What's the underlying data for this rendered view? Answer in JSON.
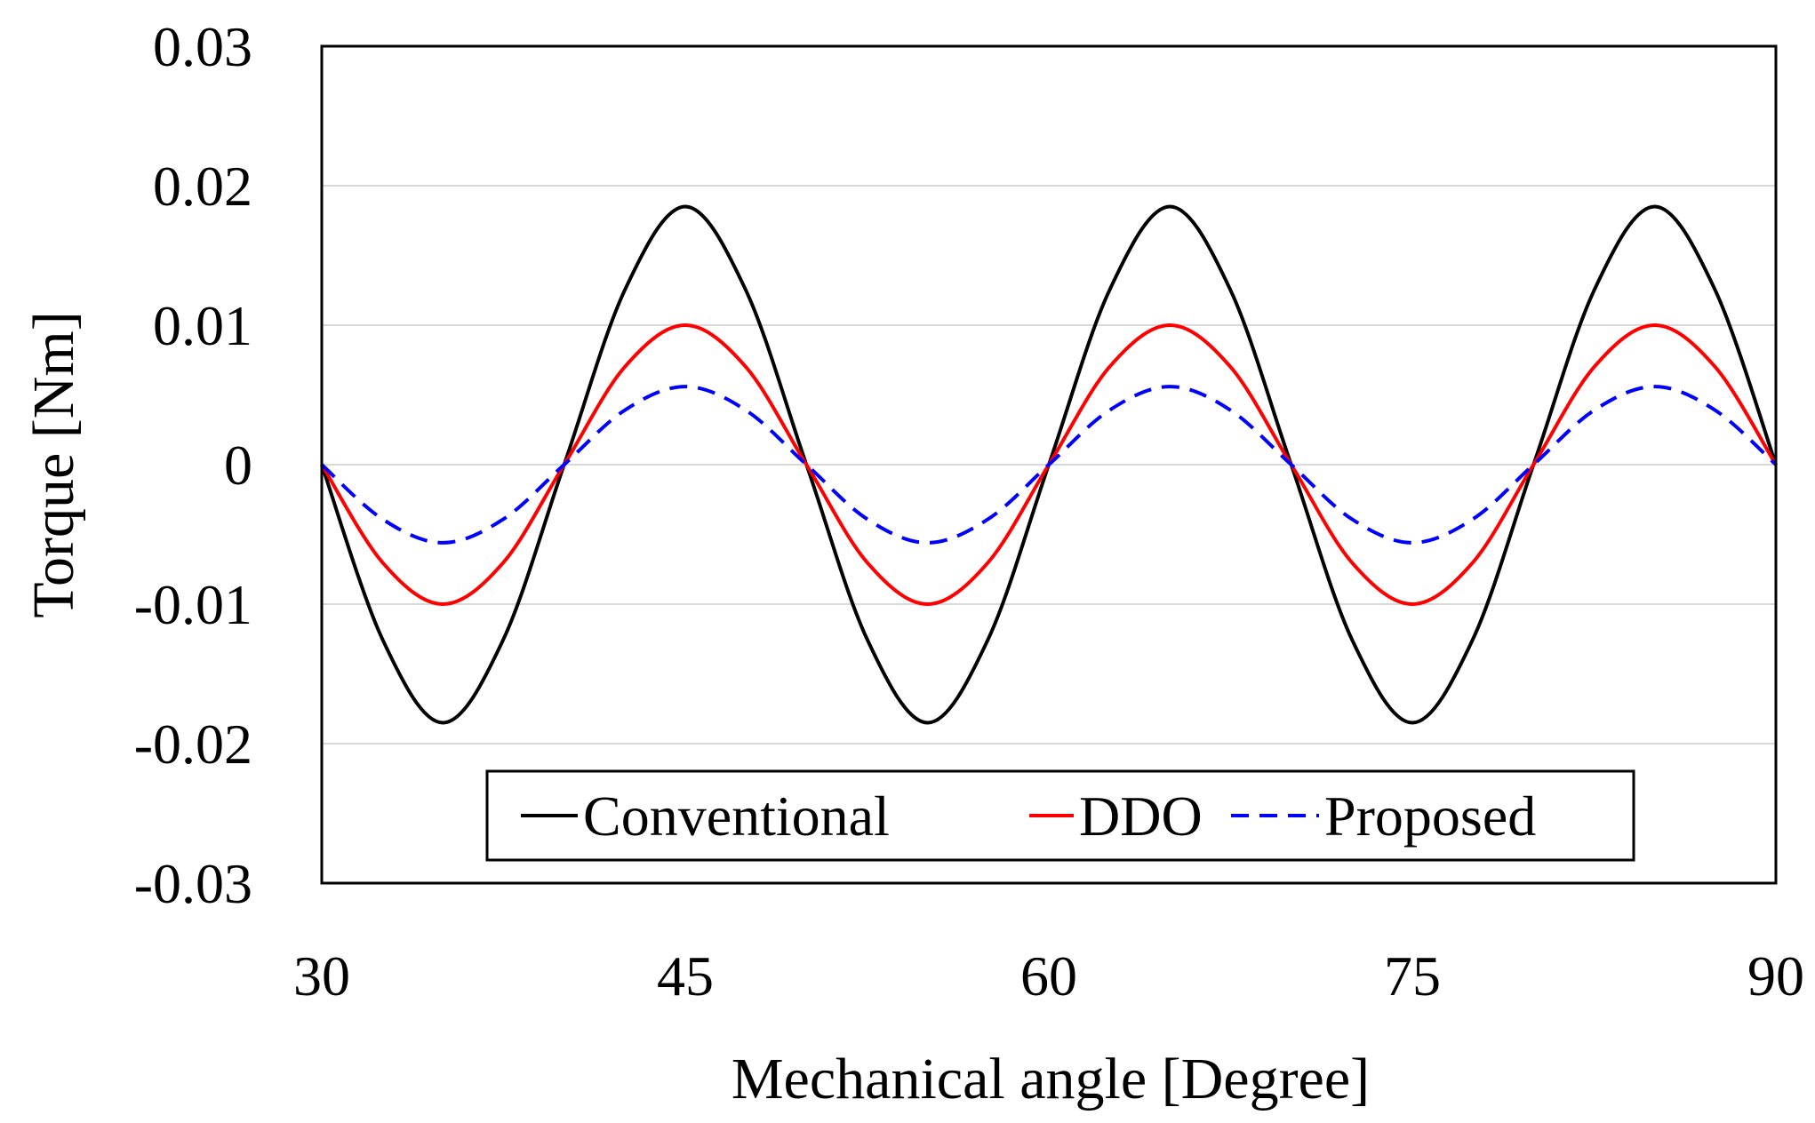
{
  "chart_data": {
    "type": "line",
    "title": "",
    "xlabel": "Mechanical angle [Degree]",
    "ylabel": "Torque [Nm]",
    "xlim": [
      30,
      90
    ],
    "ylim": [
      -0.03,
      0.03
    ],
    "xticks": [
      30,
      45,
      60,
      75,
      90
    ],
    "xtick_labels": [
      "30",
      "45",
      "60",
      "75",
      "90"
    ],
    "yticks": [
      0.03,
      0.02,
      0.01,
      0,
      -0.01,
      -0.02,
      -0.03
    ],
    "ytick_labels": [
      "0.03",
      "0.02",
      "0.01",
      "0",
      "-0.01",
      "-0.02",
      "-0.03"
    ],
    "grid": "horizontal",
    "legend_position": "bottom-center",
    "x": [
      30,
      32.5,
      35,
      37.5,
      40,
      42.5,
      45,
      47.5,
      50,
      52.5,
      55,
      57.5,
      60,
      62.5,
      65,
      67.5,
      70,
      72.5,
      75,
      77.5,
      80,
      82.5,
      85,
      87.5,
      90
    ],
    "series": [
      {
        "name": "Conventional",
        "color": "#000000",
        "dash": "solid",
        "values": [
          0,
          -0.0125,
          -0.0185,
          -0.0125,
          0,
          0.0125,
          0.0185,
          0.0125,
          0,
          -0.0125,
          -0.0185,
          -0.0125,
          0,
          0.0125,
          0.0185,
          0.0125,
          0,
          -0.0125,
          -0.0185,
          -0.0125,
          0,
          0.0125,
          0.0185,
          0.0125,
          0
        ]
      },
      {
        "name": "DDO",
        "color": "#ff0000",
        "dash": "solid",
        "values": [
          0,
          -0.007,
          -0.01,
          -0.007,
          0,
          0.007,
          0.01,
          0.007,
          0,
          -0.007,
          -0.01,
          -0.007,
          0,
          0.007,
          0.01,
          0.007,
          0,
          -0.007,
          -0.01,
          -0.007,
          0,
          0.007,
          0.01,
          0.007,
          0
        ]
      },
      {
        "name": "Proposed",
        "color": "#0000ff",
        "dash": "dashed",
        "values": [
          0,
          -0.0039,
          -0.0056,
          -0.0039,
          0,
          0.0039,
          0.0056,
          0.0039,
          0,
          -0.0039,
          -0.0056,
          -0.0039,
          0,
          0.0039,
          0.0056,
          0.0039,
          0,
          -0.0039,
          -0.0056,
          -0.0039,
          0,
          0.0039,
          0.0056,
          0.0039,
          0
        ]
      }
    ]
  }
}
